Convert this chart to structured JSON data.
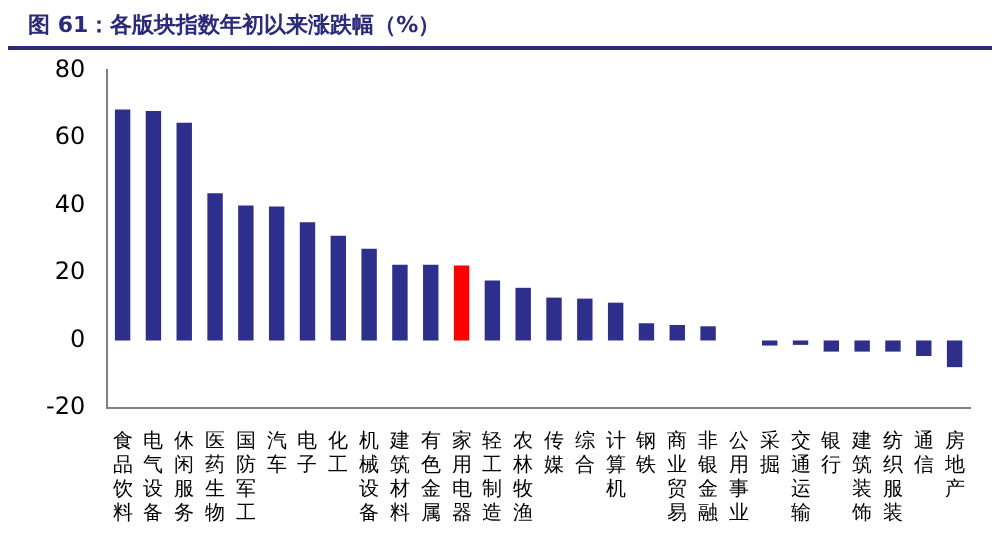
{
  "chart_data": {
    "type": "bar",
    "title": "图 61：各版块指数年初以来涨跌幅（%）",
    "categories": [
      "食品饮料",
      "电气设备",
      "休闲服务",
      "医药生物",
      "国防军工",
      "汽车",
      "电子",
      "化工",
      "机械设备",
      "建筑材料",
      "有色金属",
      "家用电器",
      "轻工制造",
      "农林牧渔",
      "传媒",
      "综合",
      "计算机",
      "钢铁",
      "商业贸易",
      "非银金融",
      "公用事业",
      "采掘",
      "交通运输",
      "银行",
      "建筑装饰",
      "纺织服装",
      "通信",
      "房地产"
    ],
    "values": [
      68.4,
      68,
      64.5,
      43.6,
      40,
      39.7,
      35,
      31,
      27.2,
      22.4,
      22.4,
      22.2,
      17.8,
      15.6,
      12.7,
      12.4,
      11.2,
      5.1,
      4.6,
      4.2,
      null,
      -1.5,
      -1.3,
      -3.3,
      -3.3,
      -3.3,
      -4.6,
      -7.9
    ],
    "colors": [
      "#2e2e8c",
      "#2e2e8c",
      "#2e2e8c",
      "#2e2e8c",
      "#2e2e8c",
      "#2e2e8c",
      "#2e2e8c",
      "#2e2e8c",
      "#2e2e8c",
      "#2e2e8c",
      "#2e2e8c",
      "#ff0000",
      "#2e2e8c",
      "#2e2e8c",
      "#2e2e8c",
      "#2e2e8c",
      "#2e2e8c",
      "#2e2e8c",
      "#2e2e8c",
      "#2e2e8c",
      "#2e2e8c",
      "#2e2e8c",
      "#2e2e8c",
      "#2e2e8c",
      "#2e2e8c",
      "#2e2e8c",
      "#2e2e8c",
      "#2e2e8c"
    ],
    "ylim": [
      -20,
      80
    ],
    "yticks": [
      -20,
      0,
      20,
      40,
      60,
      80
    ],
    "grid": false,
    "legend": false
  }
}
